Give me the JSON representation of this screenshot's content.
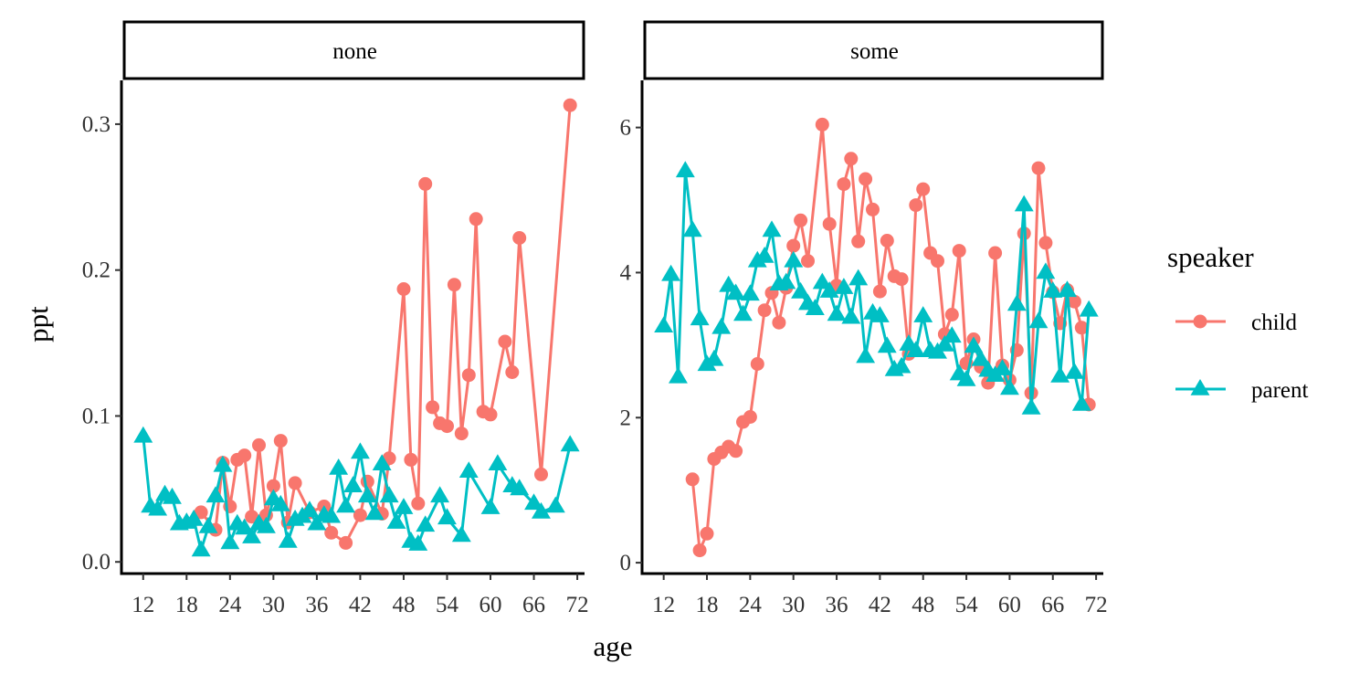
{
  "chart_data": {
    "type": "line",
    "xlabel": "age",
    "ylabel": "ppt",
    "x_ticks": [
      12,
      18,
      24,
      30,
      36,
      42,
      48,
      54,
      60,
      66,
      72
    ],
    "legend": {
      "title": "speaker",
      "placement": "right",
      "entries": [
        {
          "name": "child",
          "marker": "circle",
          "color": "#F8766D"
        },
        {
          "name": "parent",
          "marker": "triangle",
          "color": "#00BFC4"
        }
      ]
    },
    "facets": [
      {
        "label": "none",
        "xlim": [
          9,
          73
        ],
        "ylim": [
          -0.008,
          0.33
        ],
        "y_ticks": [
          {
            "v": 0.0,
            "label": "0.0"
          },
          {
            "v": 0.1,
            "label": "0.1"
          },
          {
            "v": 0.2,
            "label": "0.2"
          },
          {
            "v": 0.3,
            "label": "0.3"
          }
        ],
        "series": [
          {
            "name": "child",
            "points": [
              [
                20,
                0.034
              ],
              [
                22,
                0.022
              ],
              [
                23,
                0.068
              ],
              [
                24,
                0.038
              ],
              [
                25,
                0.07
              ],
              [
                26,
                0.073
              ],
              [
                27,
                0.031
              ],
              [
                28,
                0.08
              ],
              [
                29,
                0.032
              ],
              [
                30,
                0.052
              ],
              [
                31,
                0.083
              ],
              [
                32,
                0.027
              ],
              [
                33,
                0.054
              ],
              [
                35,
                0.034
              ],
              [
                37,
                0.038
              ],
              [
                38,
                0.02
              ],
              [
                40,
                0.013
              ],
              [
                42,
                0.032
              ],
              [
                43,
                0.055
              ],
              [
                45,
                0.033
              ],
              [
                46,
                0.071
              ],
              [
                48,
                0.187
              ],
              [
                49,
                0.07
              ],
              [
                50,
                0.04
              ],
              [
                51,
                0.259
              ],
              [
                52,
                0.106
              ],
              [
                53,
                0.095
              ],
              [
                54,
                0.093
              ],
              [
                55,
                0.19
              ],
              [
                56,
                0.088
              ],
              [
                57,
                0.128
              ],
              [
                58,
                0.235
              ],
              [
                59,
                0.103
              ],
              [
                60,
                0.101
              ],
              [
                62,
                0.151
              ],
              [
                63,
                0.13
              ],
              [
                64,
                0.222
              ],
              [
                67,
                0.06
              ],
              [
                71,
                0.313
              ]
            ]
          },
          {
            "name": "parent",
            "points": [
              [
                12,
                0.086
              ],
              [
                13,
                0.038
              ],
              [
                14,
                0.036
              ],
              [
                15,
                0.046
              ],
              [
                16,
                0.044
              ],
              [
                17,
                0.026
              ],
              [
                18,
                0.027
              ],
              [
                19,
                0.029
              ],
              [
                20,
                0.008
              ],
              [
                21,
                0.024
              ],
              [
                22,
                0.045
              ],
              [
                23,
                0.066
              ],
              [
                24,
                0.013
              ],
              [
                25,
                0.026
              ],
              [
                26,
                0.023
              ],
              [
                27,
                0.017
              ],
              [
                28,
                0.026
              ],
              [
                29,
                0.024
              ],
              [
                30,
                0.043
              ],
              [
                31,
                0.039
              ],
              [
                32,
                0.014
              ],
              [
                33,
                0.029
              ],
              [
                34,
                0.031
              ],
              [
                35,
                0.035
              ],
              [
                36,
                0.026
              ],
              [
                37,
                0.032
              ],
              [
                38,
                0.031
              ],
              [
                39,
                0.064
              ],
              [
                40,
                0.038
              ],
              [
                41,
                0.052
              ],
              [
                42,
                0.075
              ],
              [
                43,
                0.045
              ],
              [
                44,
                0.033
              ],
              [
                45,
                0.067
              ],
              [
                46,
                0.045
              ],
              [
                47,
                0.027
              ],
              [
                48,
                0.037
              ],
              [
                49,
                0.014
              ],
              [
                50,
                0.012
              ],
              [
                51,
                0.025
              ],
              [
                53,
                0.045
              ],
              [
                54,
                0.03
              ],
              [
                56,
                0.018
              ],
              [
                57,
                0.062
              ],
              [
                60,
                0.037
              ],
              [
                61,
                0.067
              ],
              [
                63,
                0.052
              ],
              [
                64,
                0.05
              ],
              [
                66,
                0.04
              ],
              [
                67,
                0.034
              ],
              [
                69,
                0.038
              ],
              [
                71,
                0.08
              ]
            ]
          }
        ]
      },
      {
        "label": "some",
        "xlim": [
          9,
          73
        ],
        "ylim": [
          -0.15,
          6.65
        ],
        "y_ticks": [
          {
            "v": 0,
            "label": "0"
          },
          {
            "v": 2,
            "label": "2"
          },
          {
            "v": 4,
            "label": "4"
          },
          {
            "v": 6,
            "label": "6"
          }
        ],
        "series": [
          {
            "name": "child",
            "points": [
              [
                16,
                1.15
              ],
              [
                17,
                0.17
              ],
              [
                18,
                0.4
              ],
              [
                19,
                1.43
              ],
              [
                20,
                1.52
              ],
              [
                21,
                1.6
              ],
              [
                22,
                1.54
              ],
              [
                23,
                1.94
              ],
              [
                24,
                2.01
              ],
              [
                25,
                2.74
              ],
              [
                26,
                3.48
              ],
              [
                27,
                3.72
              ],
              [
                28,
                3.31
              ],
              [
                29,
                3.79
              ],
              [
                30,
                4.37
              ],
              [
                31,
                4.72
              ],
              [
                32,
                4.16
              ],
              [
                34,
                6.04
              ],
              [
                35,
                4.67
              ],
              [
                36,
                3.82
              ],
              [
                37,
                5.22
              ],
              [
                38,
                5.57
              ],
              [
                39,
                4.43
              ],
              [
                40,
                5.29
              ],
              [
                41,
                4.87
              ],
              [
                42,
                3.74
              ],
              [
                43,
                4.44
              ],
              [
                44,
                3.95
              ],
              [
                45,
                3.91
              ],
              [
                46,
                2.88
              ],
              [
                47,
                4.93
              ],
              [
                48,
                5.15
              ],
              [
                49,
                4.27
              ],
              [
                50,
                4.16
              ],
              [
                51,
                3.15
              ],
              [
                52,
                3.42
              ],
              [
                53,
                4.3
              ],
              [
                54,
                2.75
              ],
              [
                55,
                3.08
              ],
              [
                56,
                2.7
              ],
              [
                57,
                2.48
              ],
              [
                58,
                4.27
              ],
              [
                59,
                2.72
              ],
              [
                60,
                2.52
              ],
              [
                61,
                2.93
              ],
              [
                62,
                4.54
              ],
              [
                63,
                2.34
              ],
              [
                64,
                5.44
              ],
              [
                65,
                4.41
              ],
              [
                66,
                3.73
              ],
              [
                67,
                3.3
              ],
              [
                68,
                3.76
              ],
              [
                69,
                3.6
              ],
              [
                70,
                3.24
              ],
              [
                71,
                2.18
              ]
            ]
          },
          {
            "name": "parent",
            "points": [
              [
                12,
                3.26
              ],
              [
                13,
                3.97
              ],
              [
                14,
                2.56
              ],
              [
                15,
                5.4
              ],
              [
                16,
                4.58
              ],
              [
                17,
                3.36
              ],
              [
                18,
                2.73
              ],
              [
                19,
                2.8
              ],
              [
                20,
                3.24
              ],
              [
                21,
                3.82
              ],
              [
                22,
                3.71
              ],
              [
                23,
                3.42
              ],
              [
                24,
                3.7
              ],
              [
                25,
                4.16
              ],
              [
                26,
                4.22
              ],
              [
                27,
                4.58
              ],
              [
                28,
                3.84
              ],
              [
                29,
                3.86
              ],
              [
                30,
                4.16
              ],
              [
                31,
                3.73
              ],
              [
                32,
                3.57
              ],
              [
                33,
                3.5
              ],
              [
                34,
                3.86
              ],
              [
                35,
                3.74
              ],
              [
                36,
                3.42
              ],
              [
                37,
                3.79
              ],
              [
                38,
                3.38
              ],
              [
                39,
                3.91
              ],
              [
                40,
                2.84
              ],
              [
                41,
                3.44
              ],
              [
                42,
                3.4
              ],
              [
                43,
                2.98
              ],
              [
                44,
                2.66
              ],
              [
                45,
                2.7
              ],
              [
                46,
                3.01
              ],
              [
                47,
                2.92
              ],
              [
                48,
                3.4
              ],
              [
                49,
                2.92
              ],
              [
                50,
                2.9
              ],
              [
                51,
                3.0
              ],
              [
                52,
                3.12
              ],
              [
                53,
                2.6
              ],
              [
                54,
                2.52
              ],
              [
                55,
                2.98
              ],
              [
                56,
                2.8
              ],
              [
                57,
                2.65
              ],
              [
                58,
                2.58
              ],
              [
                59,
                2.67
              ],
              [
                60,
                2.4
              ],
              [
                61,
                3.56
              ],
              [
                62,
                4.93
              ],
              [
                63,
                2.13
              ],
              [
                64,
                3.32
              ],
              [
                65,
                4.0
              ],
              [
                66,
                3.74
              ],
              [
                67,
                2.57
              ],
              [
                68,
                3.75
              ],
              [
                69,
                2.62
              ],
              [
                70,
                2.18
              ],
              [
                71,
                3.48
              ]
            ]
          }
        ]
      }
    ]
  }
}
